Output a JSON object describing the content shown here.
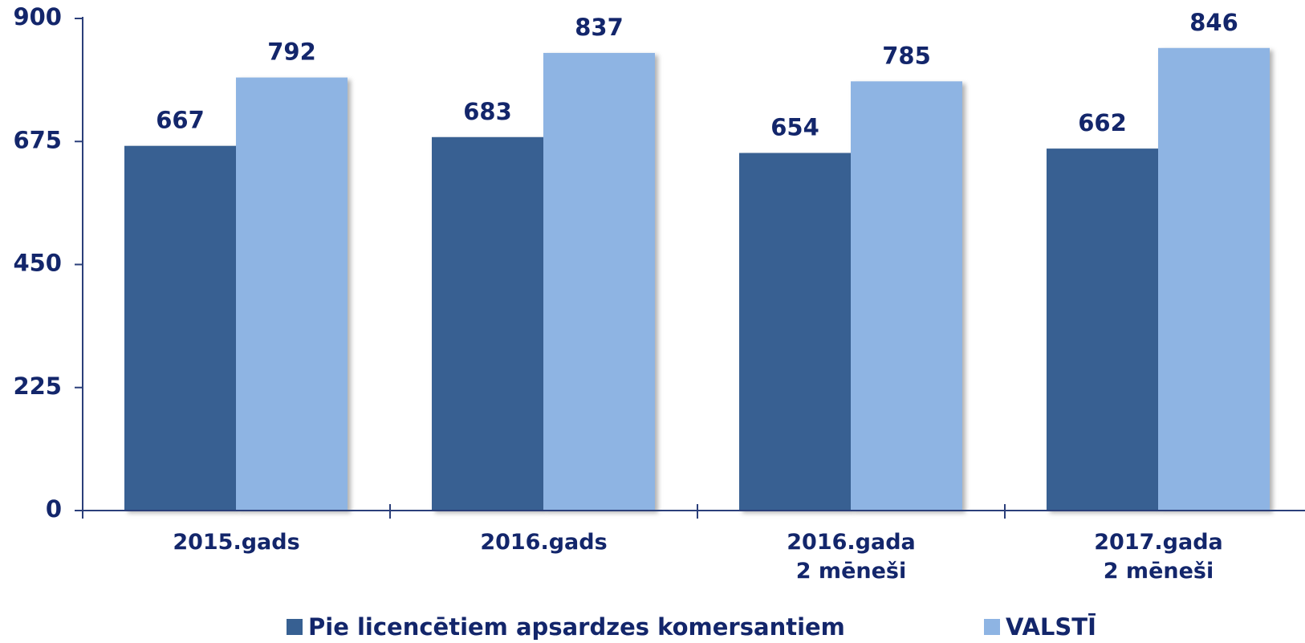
{
  "chart_data": {
    "type": "bar",
    "categories": [
      "2015.gads",
      "2016.gads",
      "2016.gada\n2 mēneši",
      "2017.gada\n2 mēneši"
    ],
    "series": [
      {
        "name": "Pie licencētiem apsardzes komersantiem",
        "color": "#376092",
        "values": [
          667,
          683,
          654,
          662
        ]
      },
      {
        "name": "VALSTĪ",
        "color": "#8eb4e3",
        "values": [
          792,
          837,
          785,
          846
        ]
      }
    ],
    "ylim": [
      0,
      900
    ],
    "yticks": [
      0,
      225,
      450,
      675,
      900
    ],
    "grid": false
  }
}
